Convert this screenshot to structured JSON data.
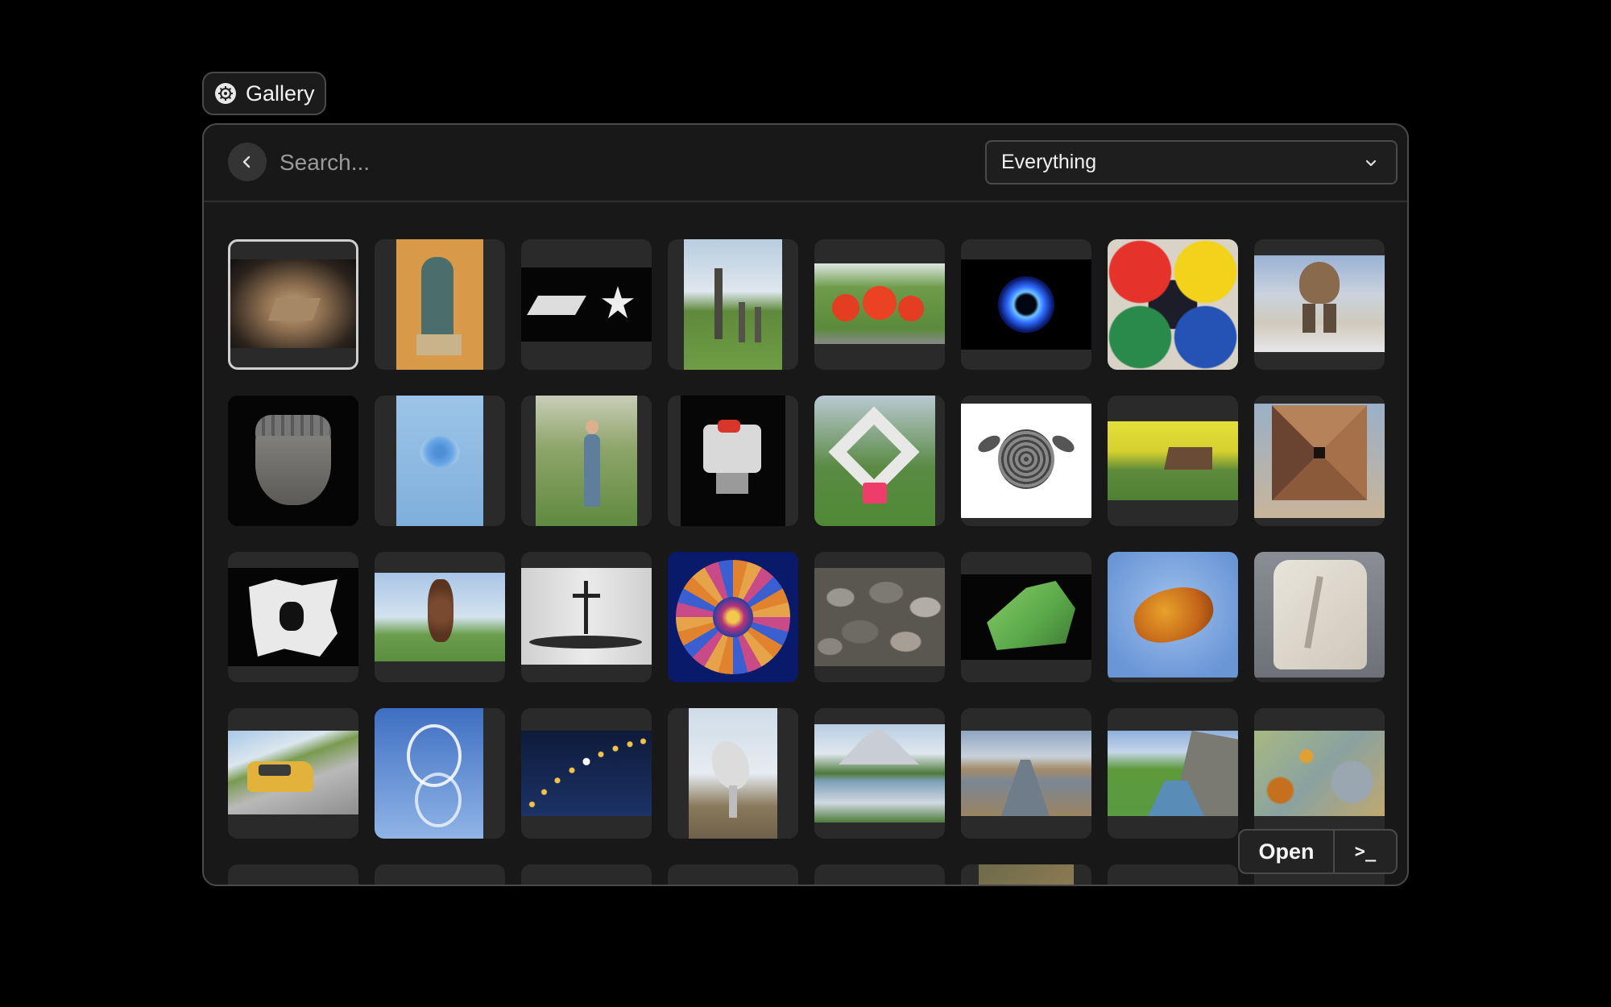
{
  "tab": {
    "title": "Gallery",
    "icon": "gear-icon"
  },
  "search": {
    "placeholder": "Search...",
    "value": ""
  },
  "filter": {
    "selected": "Everything"
  },
  "actions": {
    "open_label": "Open",
    "terminal_label": ">_"
  },
  "items": [
    "sand-pyramid",
    "seated-figure",
    "paper-star",
    "wooden-posts",
    "red-spheres",
    "blue-ring",
    "geometric-mural",
    "stone-head-on-snow",
    "stone-mask",
    "blue-rose-stencil",
    "woman-in-garden",
    "robot-figure",
    "white-loop-sculpture",
    "sea-turtle",
    "rapeseed-field-barn",
    "wooden-pyramid",
    "white-block-sculpture",
    "stacked-stone-tower",
    "cross-and-whale",
    "mandala",
    "pebbles",
    "green-mineral",
    "amber",
    "fossil-stone",
    "yellow-car",
    "airshow-trails",
    "eclipse-sequence",
    "radar-dish",
    "mountain-lake",
    "reed-river",
    "fjord-valley",
    "lichen-rock",
    "row5-item1",
    "row5-item2",
    "row5-item3",
    "row5-item4",
    "row5-item5",
    "rocky-ground",
    "row5-item7",
    "row5-item8"
  ]
}
